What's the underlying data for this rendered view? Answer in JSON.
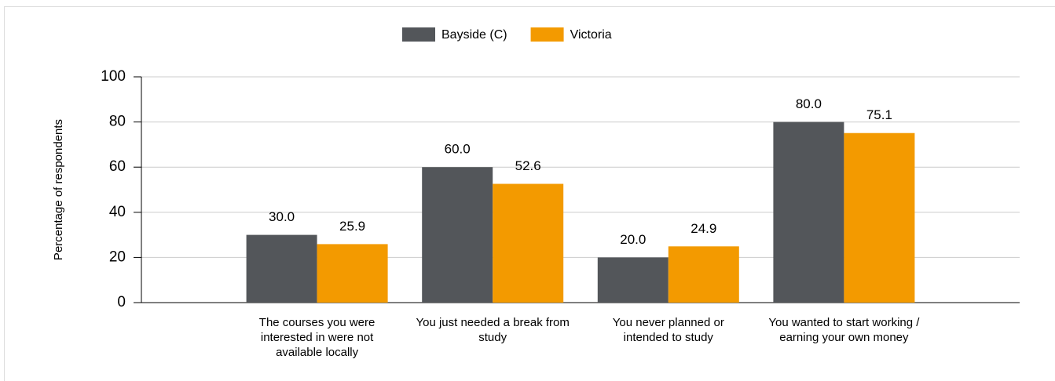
{
  "chart_data": {
    "type": "bar",
    "y_label": "Percentage of respondents",
    "categories": [
      "The courses you were interested in were not available locally",
      "You just needed a break from study",
      "You never planned or intended to study",
      "You wanted to start working / earning your own money"
    ],
    "series": [
      {
        "name": "Bayside (C)",
        "color": "#53565a",
        "values": [
          30,
          60,
          20,
          80
        ],
        "value_labels": [
          "30.0",
          "60.0",
          "20.0",
          "80.0"
        ]
      },
      {
        "name": "Victoria",
        "color": "#f39a00",
        "values": [
          25.9,
          52.6,
          24.9,
          75.1
        ],
        "value_labels": [
          "25.9",
          "52.6",
          "24.9",
          "75.1"
        ]
      }
    ],
    "ylim": [
      0,
      100
    ],
    "yticks": [
      0,
      20,
      40,
      60,
      80,
      100
    ],
    "grid": true,
    "legend": "top"
  }
}
